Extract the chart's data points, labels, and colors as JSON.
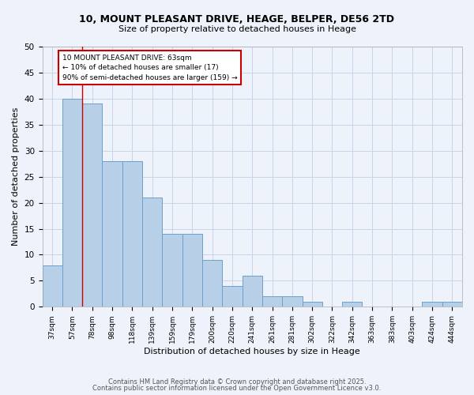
{
  "title_line1": "10, MOUNT PLEASANT DRIVE, HEAGE, BELPER, DE56 2TD",
  "title_line2": "Size of property relative to detached houses in Heage",
  "xlabel": "Distribution of detached houses by size in Heage",
  "ylabel": "Number of detached properties",
  "categories": [
    "37sqm",
    "57sqm",
    "78sqm",
    "98sqm",
    "118sqm",
    "139sqm",
    "159sqm",
    "179sqm",
    "200sqm",
    "220sqm",
    "241sqm",
    "261sqm",
    "281sqm",
    "302sqm",
    "322sqm",
    "342sqm",
    "363sqm",
    "383sqm",
    "403sqm",
    "424sqm",
    "444sqm"
  ],
  "values": [
    8,
    40,
    39,
    28,
    28,
    21,
    14,
    14,
    9,
    4,
    6,
    2,
    2,
    1,
    0,
    1,
    0,
    0,
    0,
    1,
    1
  ],
  "bar_color": "#b8cfe8",
  "bar_edge_color": "#6ca0cc",
  "bar_width": 1.0,
  "red_line_x": 1.5,
  "annotation_text": "10 MOUNT PLEASANT DRIVE: 63sqm\n← 10% of detached houses are smaller (17)\n90% of semi-detached houses are larger (159) →",
  "annotation_box_color": "#ffffff",
  "annotation_box_edge": "#cc0000",
  "ylim": [
    0,
    50
  ],
  "yticks": [
    0,
    5,
    10,
    15,
    20,
    25,
    30,
    35,
    40,
    45,
    50
  ],
  "grid_color": "#c8d4e8",
  "background_color": "#eef2fa",
  "footer_line1": "Contains HM Land Registry data © Crown copyright and database right 2025.",
  "footer_line2": "Contains public sector information licensed under the Open Government Licence v3.0."
}
